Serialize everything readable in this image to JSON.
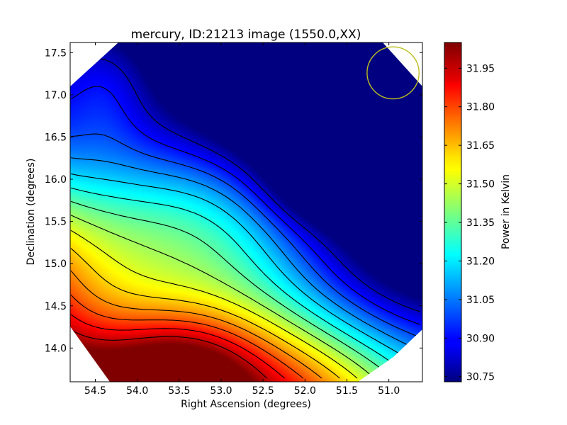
{
  "chart_data": {
    "type": "heatmap",
    "title": "mercury, ID:21213 image (1550.0,XX)",
    "xlabel": "Right Ascension (degrees)",
    "ylabel": "Declination (degrees)",
    "xlim": [
      54.8,
      50.6
    ],
    "ylim": [
      13.6,
      17.62
    ],
    "x_ticks": [
      54.5,
      54.0,
      53.5,
      53.0,
      52.5,
      52.0,
      51.5,
      51.0
    ],
    "x_tick_labels": [
      "54.5",
      "54.0",
      "53.5",
      "53.0",
      "52.5",
      "52.0",
      "51.5",
      "51.0"
    ],
    "y_ticks": [
      14.0,
      14.5,
      15.0,
      15.5,
      16.0,
      16.5,
      17.0,
      17.5
    ],
    "y_tick_labels": [
      "14.0",
      "14.5",
      "15.0",
      "15.5",
      "16.0",
      "16.5",
      "17.0",
      "17.5"
    ],
    "colormap": "jet",
    "colorbar": {
      "label": "Power in Kelvin",
      "min": 30.73,
      "max": 32.05,
      "ticks": [
        30.75,
        30.9,
        31.05,
        31.2,
        31.35,
        31.5,
        31.65,
        31.8,
        31.95
      ],
      "tick_labels": [
        "30.75",
        "30.90",
        "31.05",
        "31.20",
        "31.35",
        "31.50",
        "31.65",
        "31.80",
        "31.95"
      ]
    },
    "contour_lines": 14,
    "beam_marker": {
      "ra": 50.95,
      "dec": 17.26,
      "radius_deg": 0.31,
      "color": "#bdbd1e"
    },
    "mask": "octagonal footprint, corners clipped",
    "hot_spot": {
      "ra": 53.5,
      "dec": 13.7,
      "value": 32.03
    },
    "cold_spot": {
      "ra": 51.8,
      "dec": 16.0,
      "value": 30.73
    }
  }
}
